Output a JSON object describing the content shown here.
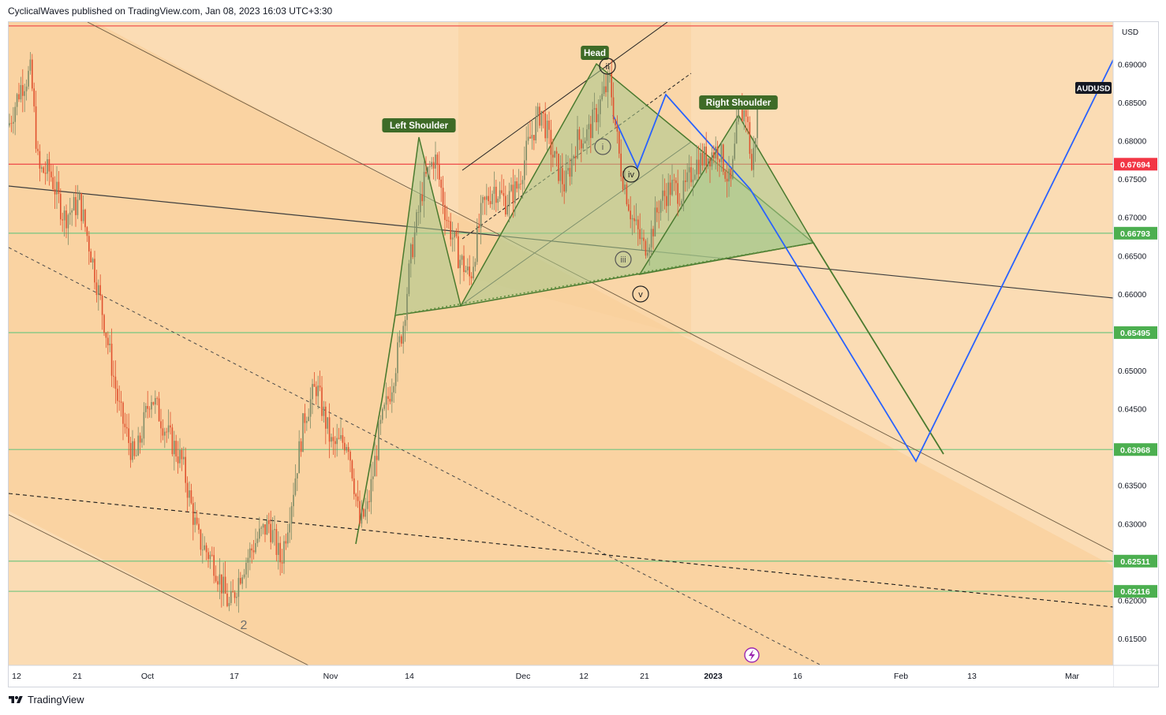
{
  "header": {
    "attribution": "CyclicalWaves published on TradingView.com, Jan 08, 2023 16:03 UTC+3:30"
  },
  "footer": {
    "brand": "TradingView",
    "logo_icon": "tradingview-logo-icon"
  },
  "colors": {
    "background_light": "#fbdcb4",
    "background_dark": "#f9cf9a",
    "candle_up": "#7e8b66",
    "candle_down": "#e0522f",
    "red_line": "#ef5350",
    "green_line": "#81c784",
    "pattern_fill": "#a5c98b",
    "pattern_stroke": "#4a7a2f",
    "projection_blue": "#2962ff",
    "label_bg": "#3e6b27",
    "price_label_green": "#4caf50",
    "price_label_red": "#f23645",
    "symbol_bg": "#131722"
  },
  "chart_data": {
    "type": "candlestick",
    "symbol": "AUDUSD",
    "currency": "USD",
    "ylim": [
      0.6115,
      0.6955
    ],
    "y_ticks": [
      "0.69000",
      "0.68500",
      "0.68000",
      "0.67500",
      "0.67000",
      "0.66500",
      "0.66000",
      "0.65500",
      "0.65000",
      "0.64500",
      "0.64000",
      "0.63500",
      "0.63000",
      "0.62500",
      "0.62000",
      "0.61500"
    ],
    "x_ticks": [
      "12",
      "21",
      "Oct",
      "17",
      "Nov",
      "14",
      "Dec",
      "12",
      "21",
      "2023",
      "16",
      "Feb",
      "13",
      "Mar"
    ],
    "price_labels": [
      {
        "value": "0.67694",
        "color": "red"
      },
      {
        "value": "0.66793",
        "color": "green"
      },
      {
        "value": "0.65495",
        "color": "green"
      },
      {
        "value": "0.63968",
        "color": "green"
      },
      {
        "value": "0.62511",
        "color": "green"
      },
      {
        "value": "0.62116",
        "color": "green"
      }
    ],
    "horizontal_levels": [
      {
        "price": 0.695,
        "color": "red"
      },
      {
        "price": 0.67694,
        "color": "red"
      },
      {
        "price": 0.66793,
        "color": "green"
      },
      {
        "price": 0.65495,
        "color": "green"
      },
      {
        "price": 0.63968,
        "color": "green"
      },
      {
        "price": 0.62511,
        "color": "green"
      },
      {
        "price": 0.62116,
        "color": "green"
      }
    ],
    "candle_path": [
      [
        0,
        0.682
      ],
      [
        15,
        0.687
      ],
      [
        28,
        0.689
      ],
      [
        38,
        0.676
      ],
      [
        52,
        0.676
      ],
      [
        70,
        0.67
      ],
      [
        90,
        0.672
      ],
      [
        105,
        0.665
      ],
      [
        120,
        0.657
      ],
      [
        140,
        0.645
      ],
      [
        160,
        0.638
      ],
      [
        180,
        0.647
      ],
      [
        200,
        0.642
      ],
      [
        220,
        0.638
      ],
      [
        240,
        0.628
      ],
      [
        260,
        0.625
      ],
      [
        280,
        0.619
      ],
      [
        295,
        0.624
      ],
      [
        315,
        0.628
      ],
      [
        330,
        0.63
      ],
      [
        345,
        0.625
      ],
      [
        360,
        0.634
      ],
      [
        375,
        0.644
      ],
      [
        390,
        0.648
      ],
      [
        410,
        0.64
      ],
      [
        430,
        0.641
      ],
      [
        445,
        0.63
      ],
      [
        455,
        0.632
      ],
      [
        470,
        0.642
      ],
      [
        485,
        0.648
      ],
      [
        500,
        0.656
      ],
      [
        510,
        0.665
      ],
      [
        525,
        0.674
      ],
      [
        540,
        0.678
      ],
      [
        555,
        0.67
      ],
      [
        570,
        0.665
      ],
      [
        585,
        0.662
      ],
      [
        600,
        0.671
      ],
      [
        615,
        0.674
      ],
      [
        630,
        0.672
      ],
      [
        645,
        0.674
      ],
      [
        660,
        0.68
      ],
      [
        675,
        0.684
      ],
      [
        690,
        0.678
      ],
      [
        705,
        0.674
      ],
      [
        720,
        0.68
      ],
      [
        735,
        0.681
      ],
      [
        750,
        0.685
      ],
      [
        762,
        0.688
      ],
      [
        775,
        0.677
      ],
      [
        790,
        0.67
      ],
      [
        805,
        0.666
      ],
      [
        815,
        0.668
      ],
      [
        825,
        0.672
      ],
      [
        840,
        0.674
      ],
      [
        855,
        0.673
      ],
      [
        870,
        0.677
      ],
      [
        885,
        0.678
      ],
      [
        900,
        0.679
      ],
      [
        915,
        0.674
      ],
      [
        925,
        0.683
      ],
      [
        935,
        0.684
      ],
      [
        942,
        0.676
      ],
      [
        950,
        0.685
      ]
    ],
    "patterns": [
      {
        "label": "Left Shoulder"
      },
      {
        "label": "Head"
      },
      {
        "label": "Right Shoulder"
      }
    ],
    "wave_labels": [
      "ii",
      "i",
      "iv",
      "iii",
      "v",
      "2"
    ],
    "annotations": {
      "trend_lines": "descending channel, ascending channel, dashed trendlines",
      "projection": "blue zigzag projection to ~0.639 then up to ~0.690"
    },
    "grid": false
  }
}
